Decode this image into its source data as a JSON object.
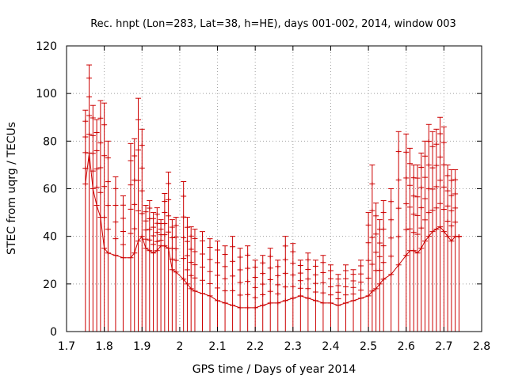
{
  "chart_data": {
    "type": "scatter",
    "style": "error-bars",
    "title": "Rec. hnpt (Lon=283, Lat=38, h=HE), days 001-002, 2014, window 003",
    "xlabel": "GPS time / Days of year 2014",
    "ylabel": "STEC from uqrg / TECUs",
    "xlim": [
      1.7,
      2.8
    ],
    "ylim": [
      0,
      120
    ],
    "xticks": [
      1.7,
      1.8,
      1.9,
      2.0,
      2.1,
      2.2,
      2.3,
      2.4,
      2.5,
      2.6,
      2.7,
      2.8
    ],
    "xtick_labels": [
      "1.7",
      "1.8",
      "1.9",
      "2",
      "2.1",
      "2.2",
      "2.3",
      "2.4",
      "2.5",
      "2.6",
      "2.7",
      "2.8"
    ],
    "yticks": [
      0,
      20,
      40,
      60,
      80,
      100,
      120
    ],
    "ytick_labels": [
      "0",
      "20",
      "40",
      "60",
      "80",
      "100",
      "120"
    ],
    "grid": true,
    "color": "#cc0000",
    "series": [
      {
        "name": "STEC",
        "x": [
          1.75,
          1.76,
          1.77,
          1.78,
          1.79,
          1.8,
          1.81,
          1.83,
          1.85,
          1.87,
          1.88,
          1.89,
          1.9,
          1.91,
          1.92,
          1.93,
          1.94,
          1.95,
          1.96,
          1.97,
          1.98,
          1.99,
          2.01,
          2.02,
          2.03,
          2.04,
          2.06,
          2.08,
          2.1,
          2.12,
          2.14,
          2.16,
          2.18,
          2.2,
          2.22,
          2.24,
          2.26,
          2.28,
          2.3,
          2.32,
          2.34,
          2.36,
          2.38,
          2.4,
          2.42,
          2.44,
          2.46,
          2.48,
          2.5,
          2.51,
          2.52,
          2.53,
          2.54,
          2.56,
          2.58,
          2.6,
          2.61,
          2.62,
          2.63,
          2.64,
          2.65,
          2.66,
          2.67,
          2.68,
          2.69,
          2.7,
          2.71,
          2.72,
          2.73,
          2.74
        ],
        "high": [
          93,
          112,
          95,
          89,
          97,
          96,
          80,
          65,
          57,
          79,
          81,
          98,
          85,
          53,
          55,
          50,
          52,
          47,
          58,
          67,
          47,
          48,
          63,
          48,
          44,
          43,
          42,
          39,
          38,
          36,
          40,
          35,
          36,
          30,
          32,
          35,
          30,
          40,
          37,
          30,
          33,
          30,
          32,
          28,
          24,
          28,
          26,
          30,
          50,
          70,
          54,
          47,
          55,
          60,
          84,
          83,
          77,
          70,
          70,
          75,
          80,
          87,
          84,
          85,
          90,
          86,
          70,
          68,
          68,
          40
        ],
        "mid": [
          62,
          75,
          60,
          53,
          48,
          35,
          33,
          32,
          31,
          31,
          33,
          38,
          40,
          35,
          34,
          33,
          34,
          36,
          36,
          35,
          26,
          25,
          22,
          20,
          18,
          17,
          16,
          15,
          13,
          12,
          11,
          10,
          10,
          10,
          11,
          12,
          12,
          13,
          14,
          15,
          14,
          13,
          12,
          12,
          11,
          12,
          13,
          14,
          15,
          17,
          18,
          20,
          22,
          24,
          28,
          32,
          34,
          34,
          33,
          35,
          38,
          40,
          42,
          43,
          44,
          42,
          40,
          38,
          40,
          40
        ]
      }
    ]
  }
}
